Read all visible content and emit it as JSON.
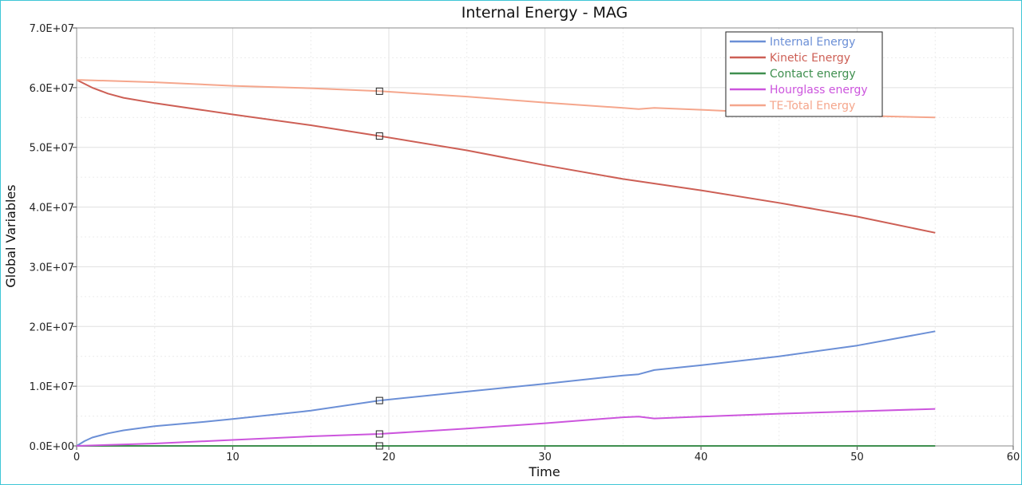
{
  "chart_data": {
    "type": "line",
    "title": "Internal Energy - MAG",
    "xlabel": "Time",
    "ylabel": "Global Variables",
    "xlim": [
      0,
      60
    ],
    "ylim": [
      0,
      70000000
    ],
    "xticks": [
      0,
      10,
      20,
      30,
      40,
      50,
      60
    ],
    "xtick_labels": [
      "0",
      "10",
      "20",
      "30",
      "40",
      "50",
      "60"
    ],
    "yticks": [
      0,
      10000000,
      20000000,
      30000000,
      40000000,
      50000000,
      60000000,
      70000000
    ],
    "ytick_labels": [
      "0.0E+00",
      "1.0E+07",
      "2.0E+07",
      "3.0E+07",
      "4.0E+07",
      "5.0E+07",
      "6.0E+07",
      "7.0E+07"
    ],
    "grid": true,
    "legend_position": "top-right",
    "marker_x": 19.4,
    "series": [
      {
        "name": "Internal Energy",
        "color": "#6b8fd6",
        "x": [
          0,
          0.5,
          1,
          2,
          3,
          5,
          8,
          10,
          15,
          19.4,
          25,
          30,
          35,
          36,
          37,
          40,
          45,
          50,
          55
        ],
        "y": [
          0,
          800000,
          1400000,
          2100000,
          2600000,
          3300000,
          4000000,
          4500000,
          5900000,
          7600000,
          9100000,
          10400000,
          11800000,
          12000000,
          12700000,
          13500000,
          15000000,
          16800000,
          19200000
        ]
      },
      {
        "name": "Kinetic Energy",
        "color": "#cd5f55",
        "x": [
          0,
          1,
          2,
          3,
          5,
          10,
          15,
          19.4,
          25,
          30,
          35,
          40,
          45,
          50,
          55
        ],
        "y": [
          61300000,
          60000000,
          59000000,
          58300000,
          57400000,
          55500000,
          53700000,
          51900000,
          49500000,
          47000000,
          44700000,
          42800000,
          40700000,
          38400000,
          35700000
        ]
      },
      {
        "name": "Contact energy",
        "color": "#3f8f4f",
        "x": [
          0,
          10,
          20,
          30,
          40,
          50,
          55
        ],
        "y": [
          0,
          0,
          0,
          0,
          0,
          0,
          0
        ]
      },
      {
        "name": "Hourglass energy",
        "color": "#cc55dd",
        "x": [
          0,
          5,
          10,
          15,
          19.4,
          25,
          30,
          35,
          36,
          37,
          40,
          45,
          50,
          55
        ],
        "y": [
          0,
          400000,
          1000000,
          1600000,
          2000000,
          2900000,
          3800000,
          4800000,
          4900000,
          4600000,
          4900000,
          5400000,
          5800000,
          6200000
        ]
      },
      {
        "name": "TE-Total Energy",
        "color": "#f5a68c",
        "x": [
          0,
          5,
          10,
          15,
          19.4,
          25,
          30,
          35,
          36,
          37,
          40,
          45,
          50,
          55
        ],
        "y": [
          61300000,
          60900000,
          60300000,
          59900000,
          59400000,
          58500000,
          57500000,
          56600000,
          56400000,
          56600000,
          56300000,
          55700000,
          55300000,
          55000000
        ]
      }
    ]
  }
}
